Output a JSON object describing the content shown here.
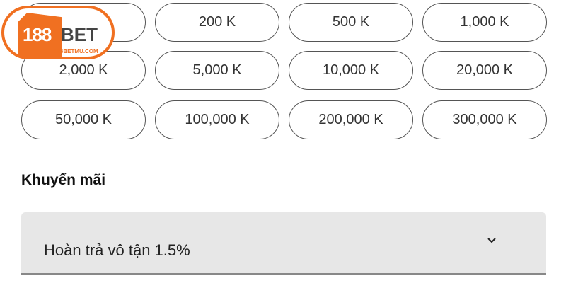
{
  "logo": {
    "brand": "188BET",
    "brand_num": "188",
    "brand_word": "BET",
    "url": "188BETMU.COM",
    "color": "#f07021"
  },
  "amounts": [
    "",
    "200 K",
    "500 K",
    "1,000 K",
    "2,000 K",
    "5,000 K",
    "10,000 K",
    "20,000 K",
    "50,000 K",
    "100,000 K",
    "200,000 K",
    "300,000 K"
  ],
  "promotion": {
    "label": "Khuyến mãi",
    "selected": "Hoàn trả vô tận 1.5%",
    "icon": "chevron-down-icon"
  }
}
